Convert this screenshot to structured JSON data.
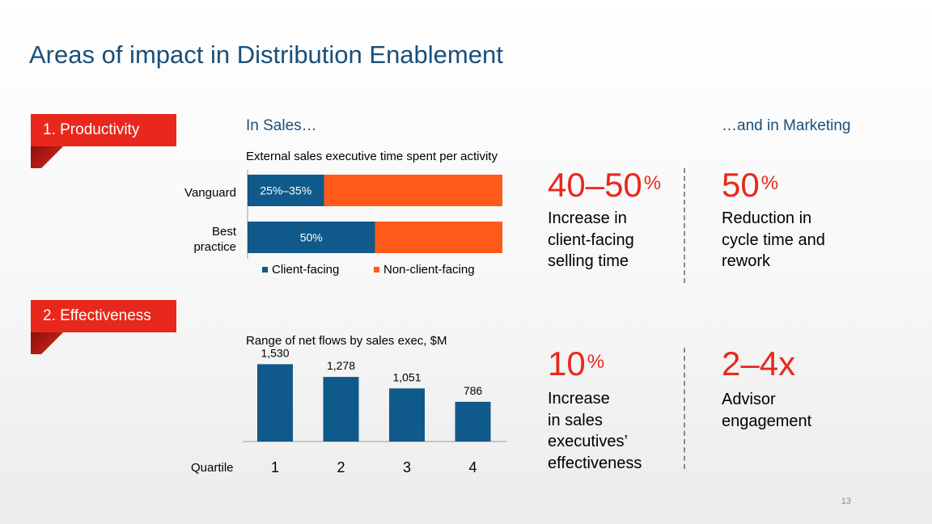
{
  "title": "Areas of impact in Distribution Enablement",
  "banners": {
    "productivity": "1. Productivity",
    "effectiveness": "2. Effectiveness"
  },
  "sections": {
    "sales": "In Sales…",
    "marketing": "…and in Marketing"
  },
  "colors": {
    "client_facing": "#0f5a8a",
    "non_client_facing": "#ff5a1a",
    "accent": "#e8281c",
    "title": "#1a4f7a"
  },
  "metrics": {
    "sales_productivity": {
      "value": "40–50",
      "suffix": "%",
      "desc_lines": [
        "Increase in",
        "client-facing",
        "selling time"
      ]
    },
    "marketing_productivity": {
      "value": "50",
      "suffix": "%",
      "desc_lines": [
        "Reduction in",
        "cycle time and",
        "rework"
      ]
    },
    "sales_effectiveness": {
      "value": "10",
      "suffix": "%",
      "desc_lines": [
        "Increase",
        "in sales",
        "executives’",
        "effectiveness"
      ]
    },
    "marketing_effectiveness": {
      "value": "2–4x",
      "suffix": "",
      "desc_lines": [
        "Advisor",
        "engagement"
      ]
    }
  },
  "page_number": "13",
  "chart_data": [
    {
      "type": "bar",
      "orientation": "horizontal",
      "stacked": true,
      "title": "External sales executive time spent per activity",
      "categories": [
        "Vanguard",
        "Best practice"
      ],
      "category_lines": [
        [
          "Vanguard"
        ],
        [
          "Best",
          "practice"
        ]
      ],
      "series": [
        {
          "name": "Client-facing",
          "values": [
            30,
            50
          ],
          "labels": [
            "25%–35%",
            "50%"
          ]
        },
        {
          "name": "Non-client-facing",
          "values": [
            70,
            50
          ]
        }
      ],
      "xlim": [
        0,
        100
      ],
      "legend": "bottom"
    },
    {
      "type": "bar",
      "title": "Range of net flows by sales exec, $M",
      "xlabel": "Quartile",
      "categories": [
        "1",
        "2",
        "3",
        "4"
      ],
      "values": [
        1530,
        1278,
        1051,
        786
      ],
      "value_labels": [
        "1,530",
        "1,278",
        "1,051",
        "786"
      ],
      "ylim": [
        0,
        1600
      ]
    }
  ]
}
